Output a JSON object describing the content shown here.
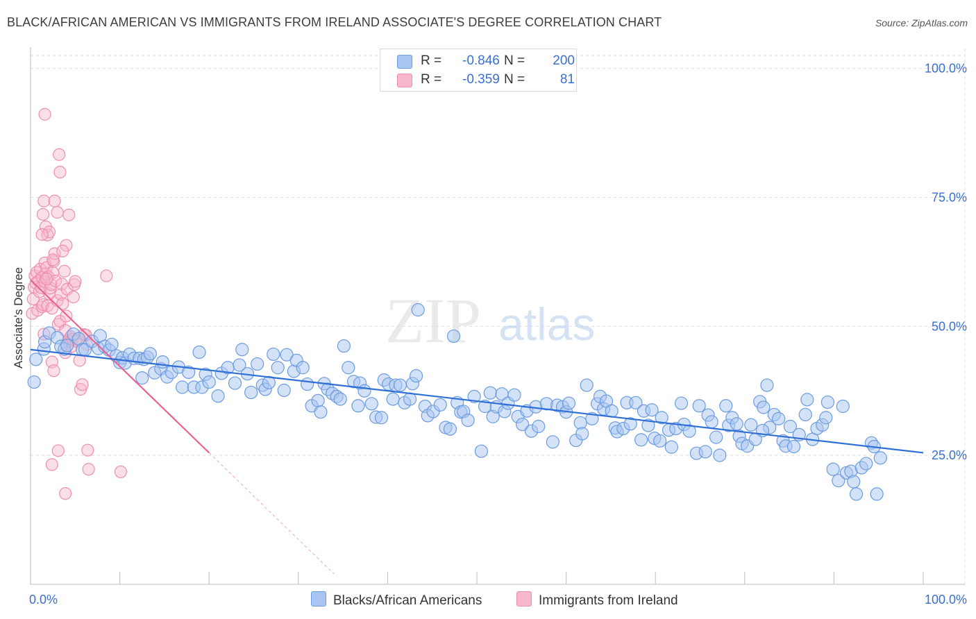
{
  "title": "BLACK/AFRICAN AMERICAN VS IMMIGRANTS FROM IRELAND ASSOCIATE'S DEGREE CORRELATION CHART",
  "source": "Source: ZipAtlas.com",
  "watermark": {
    "zip": "ZIP",
    "atlas": "atlas"
  },
  "colors": {
    "blue_fill": "#a9c6f2",
    "blue_stroke": "#6b9be0",
    "blue_line": "#2e6fd6",
    "pink_fill": "#f7b8cc",
    "pink_stroke": "#ee8fae",
    "pink_line": "#e8648e",
    "axis_text": "#3a6fd1",
    "grid": "#dddddd"
  },
  "legend": {
    "rows": [
      {
        "r_label": "R =",
        "r_value": "-0.846",
        "n_label": "N =",
        "n_value": "200",
        "color": "#a9c6f2"
      },
      {
        "r_label": "R =",
        "r_value": "-0.359",
        "n_label": "N =",
        "n_value": "81",
        "color": "#f7b8cc"
      }
    ]
  },
  "bottom_legend": [
    {
      "label": "Blacks/African Americans",
      "color": "#a9c6f2"
    },
    {
      "label": "Immigrants from Ireland",
      "color": "#f7b8cc"
    }
  ],
  "chart_data": {
    "type": "scatter",
    "title": "BLACK/AFRICAN AMERICAN VS IMMIGRANTS FROM IRELAND ASSOCIATE'S DEGREE CORRELATION CHART",
    "xlabel": "",
    "ylabel": "Associate's Degree",
    "xlim": [
      0,
      100
    ],
    "ylim": [
      0,
      102.5
    ],
    "x_tick_labels": [
      "0.0%",
      "100.0%"
    ],
    "y_ticks": [
      25,
      50,
      75,
      100
    ],
    "y_tick_labels": [
      "25.0%",
      "50.0%",
      "75.0%",
      "100.0%"
    ],
    "grid": true,
    "legend_position": "top-center",
    "series": [
      {
        "name": "Blacks/African Americans",
        "color": "#a9c6f2",
        "trend": {
          "x": [
            0,
            100
          ],
          "y": [
            45.5,
            25.5
          ]
        },
        "points": [
          [
            0.4,
            39.2
          ],
          [
            0.6,
            43.6
          ],
          [
            1.5,
            45.6
          ],
          [
            1.6,
            47.0
          ],
          [
            2.1,
            48.7
          ],
          [
            3.0,
            47.8
          ],
          [
            3.4,
            46.1
          ],
          [
            3.8,
            45.6
          ],
          [
            4.1,
            46.3
          ],
          [
            4.8,
            48.5
          ],
          [
            5.4,
            47.6
          ],
          [
            5.8,
            45.5
          ],
          [
            6.1,
            45.5
          ],
          [
            6.9,
            47.1
          ],
          [
            7.6,
            45.7
          ],
          [
            7.8,
            48.2
          ],
          [
            8.3,
            46.1
          ],
          [
            8.8,
            45.4
          ],
          [
            9.1,
            46.5
          ],
          [
            9.6,
            44.3
          ],
          [
            10.0,
            43.0
          ],
          [
            10.3,
            43.9
          ],
          [
            10.6,
            42.9
          ],
          [
            11.1,
            44.6
          ],
          [
            11.6,
            43.8
          ],
          [
            12.2,
            43.8
          ],
          [
            12.5,
            40.0
          ],
          [
            12.7,
            43.6
          ],
          [
            13.1,
            44.0
          ],
          [
            13.4,
            44.7
          ],
          [
            13.9,
            41.0
          ],
          [
            14.6,
            41.8
          ],
          [
            14.8,
            43.1
          ],
          [
            15.3,
            40.2
          ],
          [
            15.8,
            41.1
          ],
          [
            16.6,
            42.1
          ],
          [
            17.0,
            38.2
          ],
          [
            17.7,
            41.1
          ],
          [
            18.3,
            38.2
          ],
          [
            18.9,
            45.0
          ],
          [
            19.2,
            38.2
          ],
          [
            19.6,
            40.7
          ],
          [
            20.0,
            39.2
          ],
          [
            21.0,
            36.5
          ],
          [
            21.4,
            40.9
          ],
          [
            22.1,
            42.0
          ],
          [
            22.9,
            39.0
          ],
          [
            23.4,
            42.5
          ],
          [
            23.7,
            45.5
          ],
          [
            24.3,
            40.8
          ],
          [
            24.7,
            37.2
          ],
          [
            25.4,
            42.7
          ],
          [
            26.0,
            38.6
          ],
          [
            26.3,
            37.8
          ],
          [
            26.7,
            39.1
          ],
          [
            27.2,
            44.6
          ],
          [
            27.7,
            42.0
          ],
          [
            28.4,
            37.6
          ],
          [
            28.7,
            44.5
          ],
          [
            29.5,
            41.3
          ],
          [
            29.8,
            43.4
          ],
          [
            30.5,
            42.0
          ],
          [
            31.0,
            38.8
          ],
          [
            31.5,
            34.6
          ],
          [
            32.2,
            35.6
          ],
          [
            32.5,
            33.4
          ],
          [
            32.9,
            38.9
          ],
          [
            33.3,
            37.8
          ],
          [
            33.8,
            37.0
          ],
          [
            34.3,
            36.4
          ],
          [
            34.7,
            35.9
          ],
          [
            35.1,
            46.2
          ],
          [
            35.6,
            42.0
          ],
          [
            36.2,
            39.3
          ],
          [
            36.7,
            34.6
          ],
          [
            36.9,
            39.0
          ],
          [
            37.4,
            37.5
          ],
          [
            38.2,
            35.0
          ],
          [
            38.7,
            32.4
          ],
          [
            39.3,
            32.3
          ],
          [
            39.6,
            39.6
          ],
          [
            40.1,
            38.8
          ],
          [
            40.6,
            35.9
          ],
          [
            40.9,
            38.6
          ],
          [
            41.4,
            38.6
          ],
          [
            41.9,
            35.2
          ],
          [
            42.5,
            35.9
          ],
          [
            42.8,
            38.9
          ],
          [
            43.2,
            40.4
          ],
          [
            43.4,
            53.2
          ],
          [
            44.2,
            34.5
          ],
          [
            44.5,
            32.7
          ],
          [
            45.1,
            33.5
          ],
          [
            45.9,
            34.8
          ],
          [
            46.5,
            30.4
          ],
          [
            47.0,
            30.1
          ],
          [
            47.4,
            48.1
          ],
          [
            47.8,
            35.2
          ],
          [
            48.2,
            33.4
          ],
          [
            48.5,
            33.5
          ],
          [
            49.0,
            31.8
          ],
          [
            49.7,
            36.4
          ],
          [
            50.5,
            25.8
          ],
          [
            50.9,
            34.5
          ],
          [
            51.5,
            37.1
          ],
          [
            51.8,
            32.5
          ],
          [
            52.2,
            34.4
          ],
          [
            52.8,
            36.9
          ],
          [
            53.1,
            33.5
          ],
          [
            53.5,
            35.1
          ],
          [
            54.2,
            36.7
          ],
          [
            54.6,
            32.5
          ],
          [
            55.1,
            31.0
          ],
          [
            55.6,
            33.6
          ],
          [
            56.1,
            29.7
          ],
          [
            56.6,
            34.4
          ],
          [
            56.9,
            30.6
          ],
          [
            57.8,
            35.0
          ],
          [
            58.5,
            27.6
          ],
          [
            59.0,
            34.7
          ],
          [
            59.6,
            34.4
          ],
          [
            60.0,
            33.4
          ],
          [
            60.3,
            35.1
          ],
          [
            61.1,
            27.9
          ],
          [
            61.6,
            31.3
          ],
          [
            61.8,
            29.2
          ],
          [
            62.3,
            38.6
          ],
          [
            62.9,
            32.1
          ],
          [
            63.5,
            35.0
          ],
          [
            63.8,
            36.4
          ],
          [
            64.2,
            34.0
          ],
          [
            64.5,
            35.5
          ],
          [
            65.1,
            33.6
          ],
          [
            65.5,
            30.3
          ],
          [
            65.7,
            29.6
          ],
          [
            66.4,
            30.2
          ],
          [
            66.8,
            35.2
          ],
          [
            67.2,
            31.1
          ],
          [
            67.8,
            35.2
          ],
          [
            68.4,
            28.0
          ],
          [
            68.7,
            33.6
          ],
          [
            69.2,
            30.8
          ],
          [
            69.6,
            33.8
          ],
          [
            69.9,
            28.3
          ],
          [
            70.5,
            27.8
          ],
          [
            70.7,
            32.3
          ],
          [
            71.5,
            29.9
          ],
          [
            71.8,
            26.6
          ],
          [
            72.3,
            30.2
          ],
          [
            72.9,
            35.1
          ],
          [
            73.2,
            31.0
          ],
          [
            73.8,
            29.7
          ],
          [
            74.6,
            25.4
          ],
          [
            74.9,
            34.6
          ],
          [
            75.6,
            25.7
          ],
          [
            75.9,
            32.8
          ],
          [
            76.3,
            31.5
          ],
          [
            76.8,
            28.5
          ],
          [
            77.2,
            25.0
          ],
          [
            77.9,
            34.6
          ],
          [
            78.2,
            30.8
          ],
          [
            78.6,
            32.3
          ],
          [
            79.1,
            31.1
          ],
          [
            79.4,
            28.7
          ],
          [
            79.7,
            27.3
          ],
          [
            80.3,
            26.8
          ],
          [
            80.7,
            30.9
          ],
          [
            81.2,
            28.1
          ],
          [
            81.7,
            35.4
          ],
          [
            82.1,
            34.3
          ],
          [
            82.5,
            38.6
          ],
          [
            82.8,
            30.4
          ],
          [
            83.3,
            32.9
          ],
          [
            83.8,
            32.1
          ],
          [
            84.3,
            27.8
          ],
          [
            84.6,
            26.8
          ],
          [
            85.1,
            30.6
          ],
          [
            85.5,
            26.7
          ],
          [
            86.1,
            29.0
          ],
          [
            86.8,
            32.9
          ],
          [
            87.0,
            35.8
          ],
          [
            87.6,
            28.1
          ],
          [
            88.1,
            30.2
          ],
          [
            88.7,
            30.9
          ],
          [
            89.1,
            32.3
          ],
          [
            89.3,
            35.3
          ],
          [
            89.9,
            22.3
          ],
          [
            90.5,
            20.1
          ],
          [
            91.0,
            34.5
          ],
          [
            91.4,
            21.6
          ],
          [
            91.9,
            21.9
          ],
          [
            92.2,
            19.9
          ],
          [
            92.5,
            17.5
          ],
          [
            93.1,
            22.6
          ],
          [
            93.6,
            23.4
          ],
          [
            94.2,
            27.4
          ],
          [
            94.5,
            26.7
          ],
          [
            94.8,
            17.5
          ],
          [
            95.2,
            24.5
          ],
          [
            82.0,
            29.8
          ]
        ]
      },
      {
        "name": "Immigrants from Ireland",
        "color": "#f7b8cc",
        "trend": {
          "x": [
            0,
            20
          ],
          "y": [
            59.0,
            25.5
          ]
        },
        "trend_extended": {
          "x": [
            20,
            34
          ],
          "y": [
            25.5,
            2.0
          ]
        },
        "points": [
          [
            0.2,
            52.5
          ],
          [
            0.3,
            55.3
          ],
          [
            0.4,
            57.6
          ],
          [
            0.5,
            59.8
          ],
          [
            0.6,
            58.4
          ],
          [
            0.7,
            60.5
          ],
          [
            0.8,
            53.1
          ],
          [
            0.9,
            58.8
          ],
          [
            1.0,
            56.7
          ],
          [
            1.1,
            61.1
          ],
          [
            1.2,
            57.5
          ],
          [
            1.3,
            59.5
          ],
          [
            1.3,
            53.8
          ],
          [
            1.4,
            54.2
          ],
          [
            1.5,
            48.5
          ],
          [
            1.6,
            58.6
          ],
          [
            1.6,
            62.3
          ],
          [
            1.7,
            60.2
          ],
          [
            1.8,
            61.4
          ],
          [
            1.9,
            54.0
          ],
          [
            2.0,
            59.6
          ],
          [
            2.1,
            56.3
          ],
          [
            2.2,
            57.4
          ],
          [
            2.3,
            58.1
          ],
          [
            2.4,
            53.5
          ],
          [
            2.5,
            60.4
          ],
          [
            2.6,
            62.6
          ],
          [
            2.7,
            64.1
          ],
          [
            2.8,
            58.8
          ],
          [
            3.0,
            55.0
          ],
          [
            3.1,
            50.4
          ],
          [
            3.3,
            51.0
          ],
          [
            3.4,
            56.2
          ],
          [
            3.5,
            58.2
          ],
          [
            3.6,
            54.4
          ],
          [
            3.8,
            60.7
          ],
          [
            3.9,
            49.2
          ],
          [
            4.0,
            52.0
          ],
          [
            4.1,
            57.2
          ],
          [
            4.2,
            47.3
          ],
          [
            4.4,
            47.1
          ],
          [
            4.5,
            48.0
          ],
          [
            4.6,
            46.1
          ],
          [
            4.7,
            47.5
          ],
          [
            4.8,
            55.7
          ],
          [
            4.9,
            58.1
          ],
          [
            5.0,
            58.7
          ],
          [
            5.1,
            47.1
          ],
          [
            5.3,
            47.3
          ],
          [
            5.5,
            43.4
          ],
          [
            5.6,
            37.8
          ],
          [
            5.8,
            38.7
          ],
          [
            6.0,
            48.4
          ],
          [
            6.2,
            48.3
          ],
          [
            6.3,
            46.5
          ],
          [
            1.6,
            91.1
          ],
          [
            3.2,
            83.3
          ],
          [
            3.3,
            79.9
          ],
          [
            1.5,
            74.3
          ],
          [
            2.7,
            74.3
          ],
          [
            3.0,
            72.1
          ],
          [
            1.4,
            71.7
          ],
          [
            4.3,
            71.6
          ],
          [
            1.7,
            69.3
          ],
          [
            1.9,
            67.7
          ],
          [
            2.1,
            68.3
          ],
          [
            1.3,
            67.8
          ],
          [
            4.0,
            65.7
          ],
          [
            3.6,
            64.6
          ],
          [
            2.5,
            62.9
          ],
          [
            1.8,
            59.2
          ],
          [
            8.5,
            59.8
          ],
          [
            2.4,
            43.1
          ],
          [
            3.9,
            44.9
          ],
          [
            3.1,
            25.9
          ],
          [
            2.4,
            23.2
          ],
          [
            6.4,
            26.0
          ],
          [
            6.5,
            22.3
          ],
          [
            10.1,
            21.8
          ],
          [
            3.9,
            17.6
          ],
          [
            2.6,
            41.4
          ]
        ]
      }
    ]
  }
}
